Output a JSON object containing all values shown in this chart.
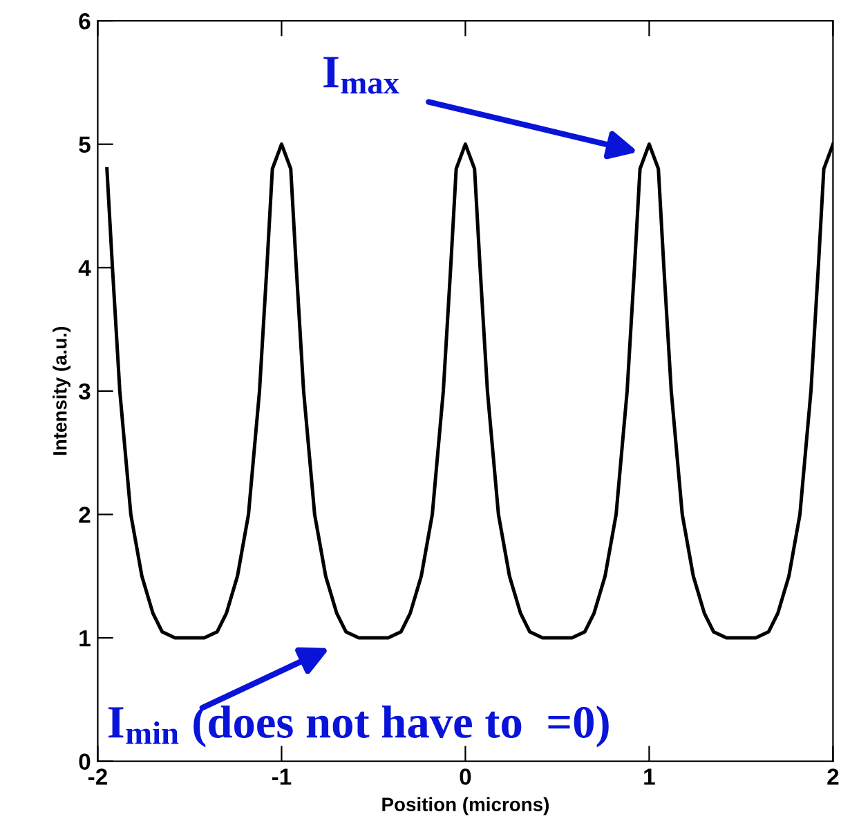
{
  "chart_data": {
    "type": "line",
    "xlabel": "Position (microns)",
    "ylabel": "Intensity (a.u.)",
    "series": [
      {
        "color": "#000000",
        "x": [
          -1.95,
          -1.92,
          -1.88,
          -1.82,
          -1.76,
          -1.7,
          -1.65,
          -1.58,
          -1.42,
          -1.35,
          -1.3,
          -1.24,
          -1.18,
          -1.12,
          -1.08,
          -1.05,
          -1,
          -0.95,
          -0.92,
          -0.88,
          -0.82,
          -0.76,
          -0.7,
          -0.65,
          -0.58,
          -0.42,
          -0.35,
          -0.3,
          -0.24,
          -0.18,
          -0.12,
          -0.08,
          -0.05,
          0,
          0.05,
          0.08,
          0.12,
          0.18,
          0.24,
          0.3,
          0.35,
          0.42,
          0.58,
          0.65,
          0.7,
          0.76,
          0.82,
          0.88,
          0.92,
          0.95,
          1,
          1.05,
          1.08,
          1.12,
          1.18,
          1.24,
          1.3,
          1.35,
          1.42,
          1.58,
          1.65,
          1.7,
          1.76,
          1.82,
          1.88,
          1.92,
          1.95,
          2
        ],
        "values": [
          4.8,
          4,
          3,
          2,
          1.5,
          1.2,
          1.05,
          1,
          1,
          1.05,
          1.2,
          1.5,
          2,
          3,
          4,
          4.8,
          5,
          4.8,
          4,
          3,
          2,
          1.5,
          1.2,
          1.05,
          1,
          1,
          1.05,
          1.2,
          1.5,
          2,
          3,
          4,
          4.8,
          5,
          4.8,
          4,
          3,
          2,
          1.5,
          1.2,
          1.05,
          1,
          1,
          1.05,
          1.2,
          1.5,
          2,
          3,
          4,
          4.8,
          5,
          4.8,
          4,
          3,
          2,
          1.5,
          1.2,
          1.05,
          1,
          1,
          1.05,
          1.2,
          1.5,
          2,
          3,
          4,
          4.8,
          5
        ]
      }
    ],
    "xlim": [
      -2,
      2
    ],
    "ylim": [
      0,
      6
    ],
    "xticks": [
      -2,
      -1,
      0,
      1,
      2
    ],
    "yticks": [
      0,
      1,
      2,
      3,
      4,
      5,
      6
    ],
    "marker": "none",
    "line_style": "solid",
    "grid": false,
    "legend": false,
    "annotations": [
      "I$_{max}$",
      "I$_{min}$ (does not have to  =0)"
    ]
  }
}
